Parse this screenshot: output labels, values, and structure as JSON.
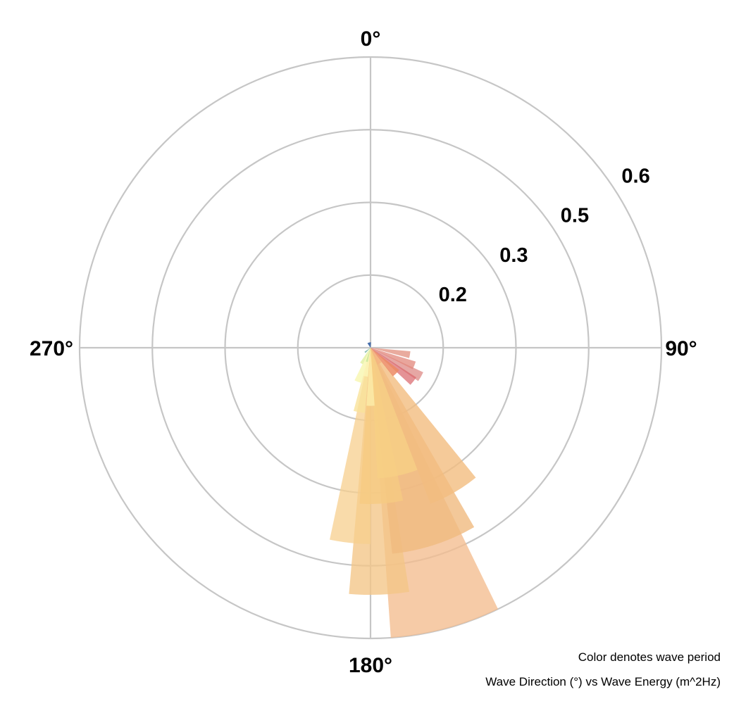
{
  "chart_data": {
    "type": "polar-bar",
    "angular_axis": {
      "direction": "clockwise",
      "zero": "north",
      "labels": [
        "0°",
        "90°",
        "180°",
        "270°"
      ]
    },
    "radial_axis": {
      "ticks": [
        0.2,
        0.3,
        0.5,
        0.6
      ],
      "max": 0.8
    },
    "grid": true,
    "wedges": [
      {
        "direction": 165,
        "width": 22,
        "energy": 0.67,
        "color": "#f3bc8e",
        "opacity": 0.78
      },
      {
        "direction": 178,
        "width": 14,
        "energy": 0.54,
        "color": "#f4c587",
        "opacity": 0.78
      },
      {
        "direction": 162,
        "width": 24,
        "energy": 0.47,
        "color": "#f0ba80",
        "opacity": 0.8
      },
      {
        "direction": 186,
        "width": 12,
        "energy": 0.44,
        "color": "#f7cf8d",
        "opacity": 0.75
      },
      {
        "direction": 150,
        "width": 18,
        "energy": 0.36,
        "color": "#f2bd80",
        "opacity": 0.8
      },
      {
        "direction": 176,
        "width": 16,
        "energy": 0.33,
        "color": "#f6cb82",
        "opacity": 0.8
      },
      {
        "direction": 168,
        "width": 18,
        "energy": 0.28,
        "color": "#f7d084",
        "opacity": 0.8
      },
      {
        "direction": 190,
        "width": 10,
        "energy": 0.18,
        "color": "#f9e29a",
        "opacity": 0.8
      },
      {
        "direction": 180,
        "width": 8,
        "energy": 0.16,
        "color": "#fbeba8",
        "opacity": 0.85
      },
      {
        "direction": 200,
        "width": 12,
        "energy": 0.1,
        "color": "#f8f7b4",
        "opacity": 0.85
      },
      {
        "direction": 190,
        "width": 10,
        "energy": 0.08,
        "color": "#fbf5b8",
        "opacity": 0.85
      },
      {
        "direction": 210,
        "width": 10,
        "energy": 0.05,
        "color": "#e3f1a5",
        "opacity": 0.85
      },
      {
        "direction": 195,
        "width": 8,
        "energy": 0.04,
        "color": "#c9e69c",
        "opacity": 0.85
      },
      {
        "direction": 120,
        "width": 10,
        "energy": 0.16,
        "color": "#de8a86",
        "opacity": 0.75
      },
      {
        "direction": 128,
        "width": 10,
        "energy": 0.15,
        "color": "#d9646a",
        "opacity": 0.7
      },
      {
        "direction": 112,
        "width": 10,
        "energy": 0.13,
        "color": "#e2877b",
        "opacity": 0.75
      },
      {
        "direction": 100,
        "width": 10,
        "energy": 0.11,
        "color": "#e49686",
        "opacity": 0.8
      },
      {
        "direction": 135,
        "width": 14,
        "energy": 0.1,
        "color": "#ec8a63",
        "opacity": 0.85
      },
      {
        "direction": 150,
        "width": 14,
        "energy": 0.05,
        "color": "#f5b480",
        "opacity": 0.85
      },
      {
        "direction": 230,
        "width": 12,
        "energy": 0.02,
        "color": "#7db6a6",
        "opacity": 0.9
      },
      {
        "direction": 345,
        "width": 40,
        "energy": 0.015,
        "color": "#3f68a8",
        "opacity": 0.95
      }
    ],
    "notes": [
      "Color denotes wave period",
      "Wave Direction (°) vs Wave Energy (m^2Hz)"
    ]
  }
}
